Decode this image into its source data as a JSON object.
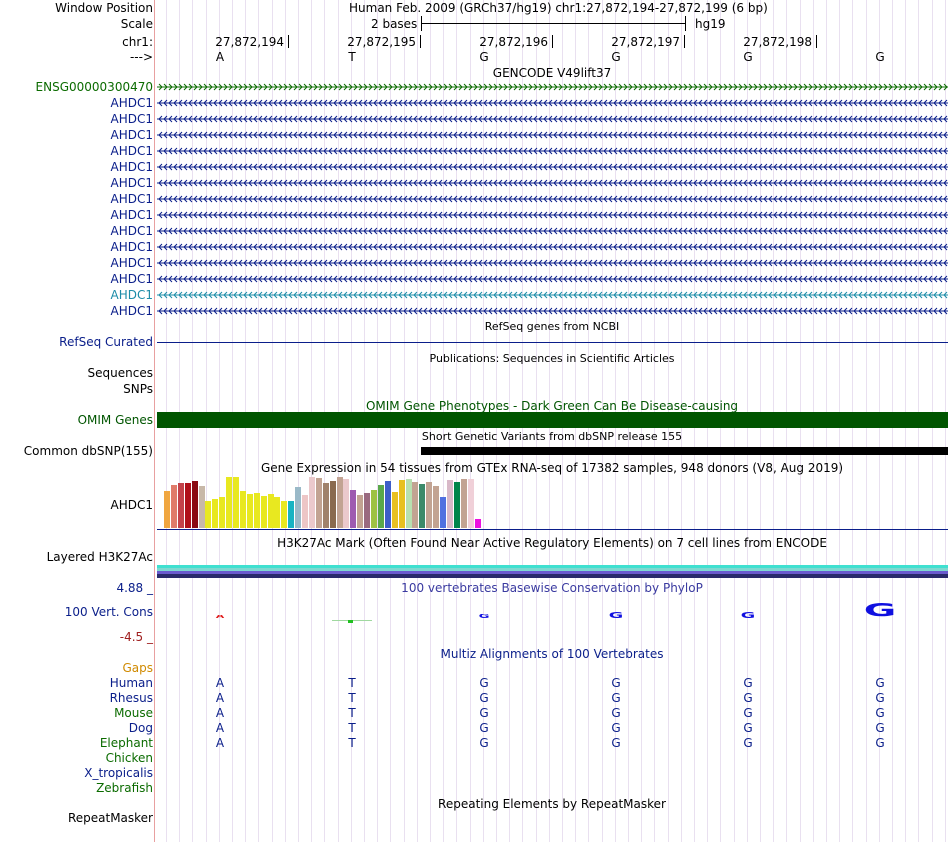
{
  "header": {
    "window_position_label": "Window Position",
    "window_position_value": "Human Feb. 2009 (GRCh37/hg19)   chr1:27,872,194-27,872,199 (6 bp)",
    "scale_label": "Scale",
    "scale_value": "2 bases",
    "assembly": "hg19",
    "chrom_label": "chr1:",
    "coords": [
      "27,872,194",
      "27,872,195",
      "27,872,196",
      "27,872,197",
      "27,872,198"
    ],
    "strand_label": "--->",
    "bases": [
      "A",
      "T",
      "G",
      "G",
      "G",
      "G"
    ]
  },
  "gencode": {
    "title": "GENCODE V49lift37",
    "ensg_label": "ENSG00000300470",
    "transcripts": [
      "AHDC1",
      "AHDC1",
      "AHDC1",
      "AHDC1",
      "AHDC1",
      "AHDC1",
      "AHDC1",
      "AHDC1",
      "AHDC1",
      "AHDC1",
      "AHDC1",
      "AHDC1",
      "AHDC1",
      "AHDC1"
    ],
    "ensg_color": "#0b6b00",
    "gene_color": "#0a1e8a",
    "highlight_color": "#1c8ca8"
  },
  "refseq": {
    "title": "RefSeq genes from NCBI",
    "label": "RefSeq Curated"
  },
  "publications": {
    "title": "Publications: Sequences in Scientific Articles",
    "labels": [
      "Sequences",
      "SNPs"
    ]
  },
  "omim": {
    "title": "OMIM Gene Phenotypes - Dark Green Can Be Disease-causing",
    "label": "OMIM Genes",
    "color": "#005500"
  },
  "dbsnp": {
    "title": "Short Genetic Variants from dbSNP release 155",
    "label": "Common dbSNP(155)"
  },
  "gtex": {
    "title": "Gene Expression in 54 tissues from GTEx RNA-seq of 17382 samples, 948 donors (V8, Aug 2019)",
    "label": "AHDC1",
    "values": [
      0.72,
      0.82,
      0.86,
      0.86,
      0.9,
      0.8,
      0.52,
      0.56,
      0.6,
      0.98,
      0.98,
      0.72,
      0.66,
      0.68,
      0.62,
      0.66,
      0.6,
      0.52,
      0.52,
      0.78,
      0.64,
      0.98,
      0.96,
      0.86,
      0.9,
      0.98,
      0.94,
      0.74,
      0.64,
      0.68,
      0.74,
      0.82,
      0.9,
      0.7,
      0.92,
      0.94,
      0.88,
      0.84,
      0.88,
      0.8,
      0.6,
      0.92,
      0.88,
      0.94,
      0.94,
      0.18
    ],
    "colors": [
      "#f0a640",
      "#e07b6a",
      "#c4424a",
      "#b0101a",
      "#8b0a12",
      "#c8b8a8",
      "#e8e820",
      "#e8e820",
      "#e8e820",
      "#e8e820",
      "#e8e820",
      "#e8e820",
      "#e8e820",
      "#e8e820",
      "#e8e820",
      "#e8e820",
      "#e8e820",
      "#e8e820",
      "#19b3c2",
      "#9ab9c8",
      "#edc6c6",
      "#ebc9cc",
      "#c2a392",
      "#a0826c",
      "#8a6a4e",
      "#c2a392",
      "#ebc9cc",
      "#9e5bb0",
      "#c2a392",
      "#9a6a80",
      "#9ec242",
      "#5aa84a",
      "#3d5ec8",
      "#e8c020",
      "#e8c020",
      "#b8e0b0",
      "#c2a392",
      "#3c8a6a",
      "#c2a392",
      "#c2a392",
      "#5070e0",
      "#d8b8c8",
      "#00844a",
      "#c2a392",
      "#f0d0d8",
      "#ec10e0"
    ]
  },
  "h3k27": {
    "title": "H3K27Ac Mark (Often Found Near Active Regulatory Elements) on 7 cell lines from ENCODE",
    "label": "Layered H3K27Ac"
  },
  "phylop": {
    "title": "100 vertebrates Basewise Conservation by PhyloP",
    "label": "100 Vert. Cons",
    "max_label": "4.88 _",
    "min_label": "-4.5 _",
    "scores": [
      0.3,
      0.05,
      0.35,
      0.45,
      0.45,
      1.0
    ],
    "colors": [
      "#e02020",
      "#20c020",
      "#1010e0",
      "#1010e0",
      "#1010e0",
      "#1010e0"
    ]
  },
  "multiz": {
    "title": "Multiz Alignments of 100 Vertebrates",
    "gaps_label": "Gaps",
    "species": [
      {
        "name": "Human",
        "color": "#0a1e8a",
        "bases": [
          "A",
          "T",
          "G",
          "G",
          "G",
          "G"
        ]
      },
      {
        "name": "Rhesus",
        "color": "#0a1e8a",
        "bases": [
          "A",
          "T",
          "G",
          "G",
          "G",
          "G"
        ]
      },
      {
        "name": "Mouse",
        "color": "#0b6b00",
        "bases": [
          "A",
          "T",
          "G",
          "G",
          "G",
          "G"
        ]
      },
      {
        "name": "Dog",
        "color": "#0a1e8a",
        "bases": [
          "A",
          "T",
          "G",
          "G",
          "G",
          "G"
        ]
      },
      {
        "name": "Elephant",
        "color": "#0b6b00",
        "bases": [
          "A",
          "T",
          "G",
          "G",
          "G",
          "G"
        ]
      },
      {
        "name": "Chicken",
        "color": "#0b6b00",
        "bases": []
      },
      {
        "name": "X_tropicalis",
        "color": "#0a1e8a",
        "bases": []
      },
      {
        "name": "Zebrafish",
        "color": "#0b6b00",
        "bases": []
      }
    ]
  },
  "repeatmasker": {
    "title": "Repeating Elements by RepeatMasker",
    "label": "RepeatMasker"
  }
}
